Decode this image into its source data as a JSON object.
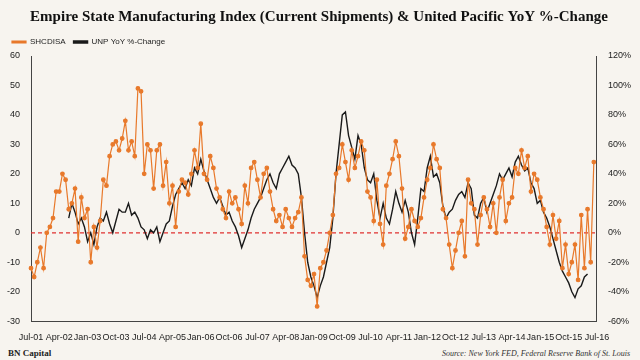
{
  "chart_data": {
    "type": "line",
    "title": "Empire State Manufacturing Index (Current Shipments) & United Pacific YoY %-Change",
    "credit": "BN Capital",
    "source": "Source: New York FED, Federal Reserve Bank of St. Louis",
    "categories": [
      "Jul-01",
      null,
      null,
      null,
      null,
      null,
      null,
      null,
      null,
      "Apr-02",
      null,
      null,
      null,
      null,
      null,
      null,
      null,
      null,
      "Jan-03",
      null,
      null,
      null,
      null,
      null,
      null,
      null,
      null,
      "Oct-03",
      null,
      null,
      null,
      null,
      null,
      null,
      null,
      null,
      "Jul-04",
      null,
      null,
      null,
      null,
      null,
      null,
      null,
      null,
      "Apr-05",
      null,
      null,
      null,
      null,
      null,
      null,
      null,
      null,
      "Jan-06",
      null,
      null,
      null,
      null,
      null,
      null,
      null,
      null,
      "Oct-06",
      null,
      null,
      null,
      null,
      null,
      null,
      null,
      null,
      "Jul-07",
      null,
      null,
      null,
      null,
      null,
      null,
      null,
      null,
      "Apr-08",
      null,
      null,
      null,
      null,
      null,
      null,
      null,
      null,
      "Jan-09",
      null,
      null,
      null,
      null,
      null,
      null,
      null,
      null,
      "Oct-09",
      null,
      null,
      null,
      null,
      null,
      null,
      null,
      null,
      "Jul-10",
      null,
      null,
      null,
      null,
      null,
      null,
      null,
      null,
      "Apr-11",
      null,
      null,
      null,
      null,
      null,
      null,
      null,
      null,
      "Jan-12",
      null,
      null,
      null,
      null,
      null,
      null,
      null,
      null,
      "Oct-12",
      null,
      null,
      null,
      null,
      null,
      null,
      null,
      null,
      "Jul-13",
      null,
      null,
      null,
      null,
      null,
      null,
      null,
      null,
      "Apr-14",
      null,
      null,
      null,
      null,
      null,
      null,
      null,
      null,
      "Jan-15",
      null,
      null,
      null,
      null,
      null,
      null,
      null,
      null,
      "Oct-15",
      null,
      null,
      null,
      null,
      null,
      null,
      null,
      null,
      "Jul-16"
    ],
    "series": [
      {
        "name": "SHCDISA",
        "color": "#e8792b",
        "marker": "circle",
        "line_style": "solid",
        "values": [
          -12,
          -15,
          -10,
          -5,
          -12,
          0,
          2,
          5,
          14,
          14,
          20,
          18,
          8,
          10,
          15,
          -3,
          12,
          5,
          8,
          -10,
          2,
          -5,
          4,
          18,
          16,
          26,
          30,
          31,
          28,
          32,
          38,
          28,
          31,
          26,
          49,
          48,
          20,
          30,
          28,
          15,
          28,
          30,
          16,
          24,
          10,
          16,
          2,
          14,
          18,
          17,
          13,
          20,
          28,
          22,
          37,
          20,
          18,
          26,
          22,
          15,
          12,
          8,
          5,
          14,
          10,
          12,
          8,
          3,
          16,
          10,
          22,
          24,
          18,
          12,
          20,
          22,
          14,
          8,
          4,
          6,
          2,
          8,
          5,
          2,
          5,
          7,
          12,
          -8,
          -16,
          -18,
          -14,
          -25,
          -12,
          -10,
          -6,
          0,
          6,
          20,
          22,
          30,
          24,
          18,
          28,
          22,
          26,
          31,
          28,
          14,
          12,
          4,
          18,
          3,
          -4,
          16,
          20,
          25,
          31,
          26,
          15,
          -2,
          2,
          8,
          4,
          2,
          5,
          12,
          18,
          22,
          30,
          25,
          22,
          8,
          5,
          -4,
          -12,
          -6,
          0,
          4,
          -8,
          18,
          10,
          8,
          -4,
          6,
          12,
          8,
          2,
          10,
          0,
          12,
          18,
          4,
          10,
          12,
          22,
          20,
          28,
          22,
          26,
          14,
          20,
          18,
          12,
          8,
          2,
          -4,
          6,
          -2,
          4,
          -12,
          -4,
          -14,
          -10,
          -4,
          -16,
          6,
          -12,
          8,
          -10,
          24,
          null
        ]
      },
      {
        "name": "UNP YoY %-Change",
        "color": "#1a1a1a",
        "marker": "none",
        "line_style": "solid",
        "axis": "y2",
        "values": [
          null,
          null,
          null,
          null,
          null,
          null,
          null,
          null,
          null,
          null,
          null,
          null,
          10,
          20,
          14,
          6,
          10,
          4,
          -6,
          0,
          -8,
          4,
          10,
          8,
          14,
          6,
          0,
          8,
          16,
          14,
          14,
          20,
          12,
          14,
          10,
          4,
          2,
          -4,
          2,
          0,
          4,
          -6,
          0,
          6,
          8,
          18,
          26,
          30,
          34,
          30,
          36,
          32,
          44,
          40,
          50,
          42,
          36,
          30,
          24,
          20,
          24,
          18,
          12,
          14,
          8,
          4,
          -2,
          -10,
          -4,
          2,
          10,
          16,
          20,
          24,
          30,
          36,
          40,
          34,
          30,
          40,
          44,
          48,
          52,
          46,
          44,
          40,
          24,
          0,
          -20,
          -30,
          -36,
          -44,
          -36,
          -30,
          -20,
          -10,
          10,
          40,
          60,
          80,
          82,
          66,
          58,
          50,
          66,
          60,
          44,
          36,
          34,
          40,
          22,
          10,
          20,
          10,
          6,
          16,
          28,
          20,
          14,
          22,
          14,
          0,
          -8,
          10,
          30,
          28,
          44,
          52,
          38,
          40,
          34,
          18,
          10,
          14,
          16,
          22,
          26,
          28,
          24,
          34,
          30,
          12,
          10,
          20,
          24,
          14,
          20,
          26,
          32,
          40,
          36,
          40,
          44,
          38,
          48,
          52,
          46,
          42,
          44,
          34,
          30,
          20,
          22,
          14,
          10,
          4,
          -4,
          -12,
          -20,
          -26,
          -30,
          -34,
          -40,
          -44,
          -38,
          -36,
          -30,
          -28,
          null,
          null,
          null
        ]
      }
    ],
    "ylim": [
      -30,
      60
    ],
    "yticks": [
      -30,
      -20,
      -10,
      0,
      10,
      20,
      30,
      40,
      50,
      60
    ],
    "y2lim": [
      -60,
      120
    ],
    "y2ticks": [
      {
        "value": -60,
        "label": "-60%"
      },
      {
        "value": -40,
        "label": "-40%"
      },
      {
        "value": -20,
        "label": "-20%"
      },
      {
        "value": 0,
        "label": "0%"
      },
      {
        "value": 20,
        "label": "20%"
      },
      {
        "value": 40,
        "label": "40%"
      },
      {
        "value": 60,
        "label": "60%"
      },
      {
        "value": 80,
        "label": "80%"
      },
      {
        "value": 100,
        "label": "100%"
      },
      {
        "value": 120,
        "label": "120%"
      }
    ],
    "reference_line": {
      "value": 0,
      "color": "#e03030",
      "line_style": "dashed"
    },
    "grid": false,
    "legend": "top-left"
  }
}
